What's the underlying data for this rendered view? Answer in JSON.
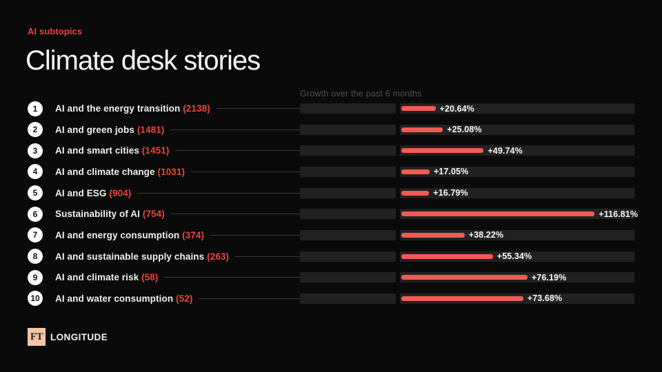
{
  "header": {
    "eyebrow": "AI subtopics",
    "title": "Climate desk stories"
  },
  "column_header": "Growth over the past 6 months",
  "chart_data": {
    "type": "bar",
    "title": "Climate desk stories",
    "subtitle": "AI subtopics",
    "value_axis_label": "Growth over the past 6 months",
    "legend": "none",
    "grid": false,
    "xlim": [
      0,
      142
    ],
    "categories": [
      "AI and the energy transition",
      "AI and green jobs",
      "AI and smart cities",
      "AI and climate change",
      "AI and ESG",
      "Sustainability of AI",
      "AI and energy consumption",
      "AI and sustainable supply chains",
      "AI and climate risk",
      "AI and water consumption"
    ],
    "story_counts": [
      2138,
      1481,
      1451,
      1031,
      904,
      754,
      374,
      263,
      58,
      52
    ],
    "growth_values": [
      20.64,
      25.08,
      49.74,
      17.05,
      16.79,
      116.81,
      38.22,
      55.34,
      76.19,
      73.68
    ],
    "rows": [
      {
        "rank": "1",
        "label": "AI and the energy transition",
        "count_display": "(2138)",
        "growth_pct": 20.64,
        "growth_display": "+20.64%"
      },
      {
        "rank": "2",
        "label": "AI and green jobs",
        "count_display": "(1481)",
        "growth_pct": 25.08,
        "growth_display": "+25.08%"
      },
      {
        "rank": "3",
        "label": "AI and smart cities",
        "count_display": "(1451)",
        "growth_pct": 49.74,
        "growth_display": "+49.74%"
      },
      {
        "rank": "4",
        "label": "AI and climate change",
        "count_display": "(1031)",
        "growth_pct": 17.05,
        "growth_display": "+17.05%"
      },
      {
        "rank": "5",
        "label": "AI and ESG",
        "count_display": "(904)",
        "growth_pct": 16.79,
        "growth_display": "+16.79%"
      },
      {
        "rank": "6",
        "label": "Sustainability of AI",
        "count_display": "(754)",
        "growth_pct": 116.81,
        "growth_display": "+116.81%"
      },
      {
        "rank": "7",
        "label": "AI and energy consumption",
        "count_display": "(374)",
        "growth_pct": 38.22,
        "growth_display": "+38.22%"
      },
      {
        "rank": "8",
        "label": "AI and sustainable supply chains",
        "count_display": "(263)",
        "growth_pct": 55.34,
        "growth_display": "+55.34%"
      },
      {
        "rank": "9",
        "label": "AI and climate risk",
        "count_display": "(58)",
        "growth_pct": 76.19,
        "growth_display": "+76.19%"
      },
      {
        "rank": "10",
        "label": "AI and water consumption",
        "count_display": "(52)",
        "growth_pct": 73.68,
        "growth_display": "+73.68%"
      }
    ]
  },
  "footer": {
    "logo_text": "FT",
    "brand": "LONGITUDE"
  },
  "colors": {
    "background": "#0a0a0a",
    "accent_red_text": "#e8463c",
    "bar_red": "#ef5c55",
    "bar_track": "#212121",
    "leader_line": "#3b3b3b",
    "muted_header": "#4f4f4f",
    "title_white": "#f6f5f2",
    "rank_circle_bg": "#ffffff",
    "rank_circle_text": "#121212",
    "ft_logo_bg": "#f4c5a6",
    "ft_logo_text": "#2a2421"
  }
}
